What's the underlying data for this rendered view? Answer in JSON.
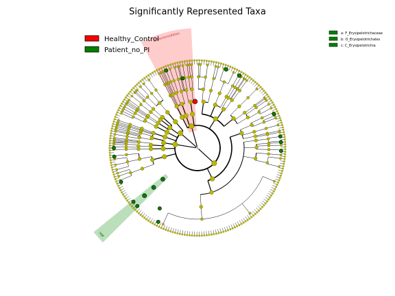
{
  "chart_data": {
    "type": "cladogram",
    "title": "Significantly Represented Taxa",
    "legend": [
      {
        "name": "Healthy_Control",
        "color": "#ff0000"
      },
      {
        "name": "Patient_no_PI",
        "color": "#008000"
      }
    ],
    "legend_placement": "top-left",
    "key_legend": [
      {
        "key": "a",
        "name": "a: F_Erysipelotrichaceae",
        "color": "#008000"
      },
      {
        "key": "b",
        "name": "b: O_Erysipelotrichales",
        "color": "#008000"
      },
      {
        "key": "c",
        "name": "c: C_Erysipelotrichia",
        "color": "#008000"
      }
    ],
    "key_legend_placement": "top-right",
    "highlighted_clades": [
      {
        "label": "p Bacteroidetes",
        "group": "Healthy_Control",
        "color": "#ff9999",
        "start_deg": -118,
        "end_deg": -93
      },
      {
        "label": "abc",
        "group": "Patient_no_PI",
        "color": "#77c077",
        "start_deg": 135,
        "end_deg": 141
      }
    ],
    "colors": {
      "node_default": "#b8b800",
      "node_default_stroke": "#6f6f00",
      "healthy": "#ff0000",
      "patient": "#008000",
      "branch": "#000000"
    }
  }
}
